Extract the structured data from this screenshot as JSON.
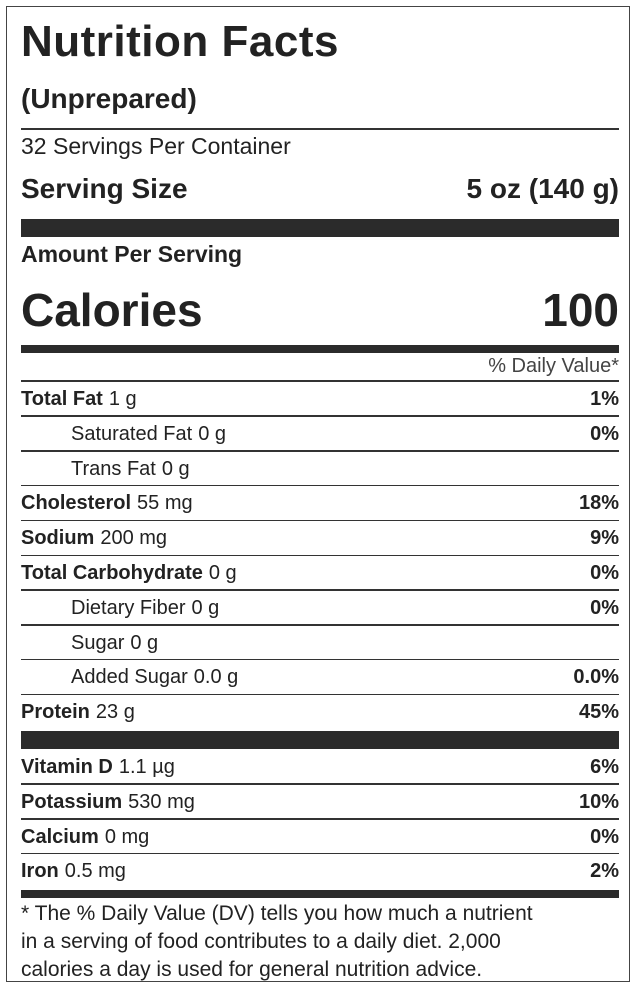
{
  "header": {
    "title": "Nutrition Facts",
    "subtitle": "(Unprepared)",
    "servings": "32 Servings Per Container",
    "serving_size_label": "Serving Size",
    "serving_size": "5 oz (140 g)"
  },
  "calories": {
    "label": "Amount Per Serving",
    "name": "Calories",
    "value": "100"
  },
  "daily_value_header": "% Daily Value*",
  "nutrients": [
    {
      "name": "Total Fat",
      "amount": "1 g",
      "dv": "1%",
      "sub": [
        {
          "name": "Saturated Fat",
          "amount": "0 g",
          "dv": "0%"
        },
        {
          "name": "Trans Fat",
          "amount": "0 g"
        }
      ]
    },
    {
      "name": "Cholesterol",
      "amount": "55 mg",
      "dv": "18%"
    },
    {
      "name": "Sodium",
      "amount": "200 mg",
      "dv": "9%"
    },
    {
      "name": "Total Carbohydrate",
      "amount": "0 g",
      "dv": "0%",
      "sub": [
        {
          "name": "Dietary Fiber",
          "amount": "0 g",
          "dv": "0%"
        },
        {
          "name": "Sugar",
          "amount": "0 g"
        },
        {
          "name": "Added Sugar",
          "amount": "0.0 g",
          "dv": "0.0%"
        }
      ]
    },
    {
      "name": "Protein",
      "amount": "23 g",
      "dv": "45%"
    }
  ],
  "vitamins": [
    {
      "name": "Vitamin D",
      "amount": "1.1 µg",
      "dv": "6%"
    },
    {
      "name": "Potassium",
      "amount": "530 mg",
      "dv": "10%"
    },
    {
      "name": "Calcium",
      "amount": "0 mg",
      "dv": "0%"
    },
    {
      "name": "Iron",
      "amount": "0.5 mg",
      "dv": "2%"
    }
  ],
  "footnote": {
    "lines": [
      "* The % Daily Value (DV) tells you how much a nutrient",
      "in a serving of food contributes to a daily diet. 2,000",
      "calories a day is used for general nutrition advice."
    ]
  }
}
